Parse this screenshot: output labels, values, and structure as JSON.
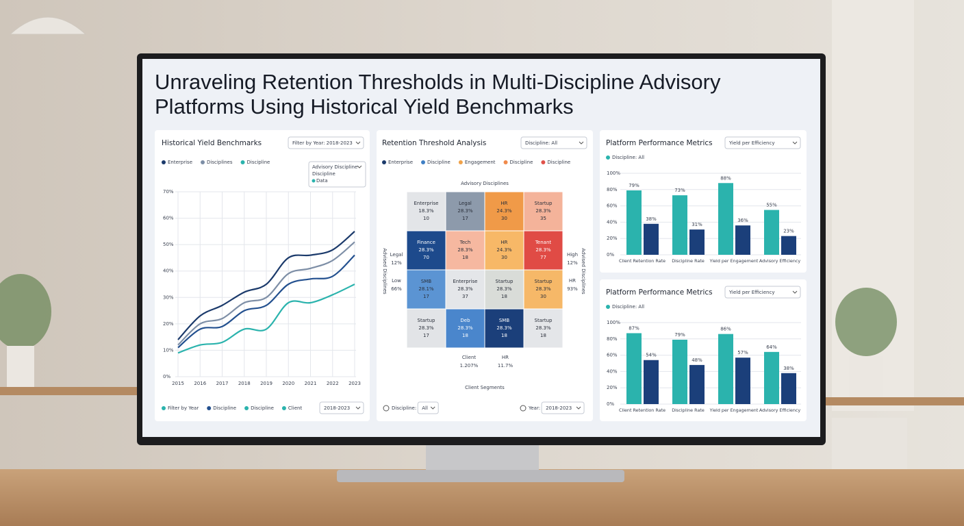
{
  "title_lines": [
    "Unraveling Retention Thresholds in Multi-Discipline Advisory",
    "Platforms Using Historical Yield Benchmarks"
  ],
  "panels": [
    {
      "title": "Historical Yield Benchmarks",
      "filter": "Filter by Year: 2018-2023",
      "popup": [
        "Advisory Discipline",
        "Discipline",
        "Data"
      ],
      "chart": {
        "type": "line",
        "categories": [
          "2015",
          "2016",
          "2017",
          "2018",
          "2019",
          "2020",
          "2021",
          "2022",
          "2023"
        ],
        "ylim": [
          0,
          70
        ],
        "yticks": [
          {
            "value": 0,
            "label": "0%"
          },
          {
            "value": 10,
            "label": "10%"
          },
          {
            "value": 20,
            "label": "20%"
          },
          {
            "value": 30,
            "label": "30%"
          },
          {
            "value": 40,
            "label": "40%"
          },
          {
            "value": 50,
            "label": "50%"
          },
          {
            "value": 60,
            "label": "60%"
          },
          {
            "value": 70,
            "label": "70%"
          }
        ],
        "series": [
          {
            "name": "Enterprise",
            "color": "#1b3a6b",
            "values": [
              14,
              23,
              27,
              32,
              35,
              45,
              46,
              48,
              55
            ]
          },
          {
            "name": "Disciplines",
            "color": "#7d8ea6",
            "values": [
              12,
              20,
              22,
              28,
              30,
              39,
              41,
              44,
              51
            ]
          },
          {
            "color": "#23508f",
            "values": [
              11,
              18,
              19,
              25,
              27,
              35,
              37,
              38,
              46
            ]
          },
          {
            "name": "Discipline",
            "color": "#2bb3ad",
            "values": [
              9,
              12,
              13,
              18,
              18,
              28,
              28,
              31,
              35
            ]
          }
        ]
      },
      "bottom_legend": [
        {
          "name": "Filter by Year",
          "color": "#2bb3ad"
        },
        {
          "name": "Discipline",
          "color": "#23508f"
        },
        {
          "name": "Discipline",
          "color": "#2bb3ad"
        },
        {
          "name": "Client",
          "color": "#2bb3ad"
        }
      ],
      "bottom_filter": "2018-2023"
    },
    {
      "title": "Retention Threshold Analysis",
      "filter": "Discipline: All",
      "legend": [
        {
          "name": "Enterprise",
          "color": "#1b3a6b"
        },
        {
          "name": "Discipline",
          "color": "#3f7fc4"
        },
        {
          "name": "Engagement",
          "color": "#f0a24a"
        },
        {
          "name": "Discipline",
          "color": "#f08a4b"
        },
        {
          "name": "Discipline",
          "color": "#e0524a"
        }
      ],
      "chart": {
        "type": "heatmap",
        "top_title": "Advisory Disciplines",
        "left_title": "Advised Disciplines",
        "right_title": "Advised Disciplines",
        "left_labels": [
          {
            "name": "Legal",
            "value": "12%"
          },
          {
            "name": "Low",
            "value": "66%"
          }
        ],
        "right_labels": [
          {
            "name": "High",
            "value": "12%"
          },
          {
            "name": "HR",
            "value": "93%"
          }
        ],
        "bottom_labels": [
          {
            "name": "Client",
            "value": "1.207%"
          },
          {
            "name": "HR",
            "value": "11.7%"
          }
        ],
        "bottom_title": "Client Segments",
        "rows": [
          [
            {
              "label": "Enterprise",
              "rate": "18.3%",
              "count": 10,
              "color": "#e3e5e8"
            },
            {
              "label": "Legal",
              "rate": "28.3%",
              "count": 17,
              "color": "#8d9aab"
            },
            {
              "label": "HR",
              "rate": "24.3%",
              "count": 30,
              "color": "#f09a48"
            },
            {
              "label": "Startup",
              "rate": "28.3%",
              "count": 35,
              "color": "#f4b39a"
            }
          ],
          [
            {
              "label": "Finance",
              "rate": "28.3%",
              "count": 70,
              "color": "#1d4a8c"
            },
            {
              "label": "Tech",
              "rate": "28.3%",
              "count": 18,
              "color": "#f6b8a0"
            },
            {
              "label": "HR",
              "rate": "24.3%",
              "count": 30,
              "color": "#f7b867"
            },
            {
              "label": "Tenant",
              "rate": "28.3%",
              "count": 77,
              "color": "#e04b45"
            }
          ],
          [
            {
              "label": "SMB",
              "rate": "28.1%",
              "count": 17,
              "color": "#5b94d3"
            },
            {
              "label": "Enterprise",
              "rate": "28.3%",
              "count": 37,
              "color": "#e4e6e9"
            },
            {
              "label": "Startup",
              "rate": "28.3%",
              "count": 18,
              "color": "#d9dcd8"
            },
            {
              "label": "Startup",
              "rate": "28.3%",
              "count": 30,
              "color": "#f6b868"
            }
          ],
          [
            {
              "label": "Startup",
              "rate": "28.3%",
              "count": 17,
              "color": "#e2e4e7"
            },
            {
              "label": "Deb",
              "rate": "28.3%",
              "count": 18,
              "color": "#4a86cc"
            },
            {
              "label": "SMB",
              "rate": "28.3%",
              "count": 18,
              "color": "#1b3f7a"
            },
            {
              "label": "Startup",
              "rate": "28.3%",
              "count": 18,
              "color": "#e4e6e9"
            }
          ]
        ]
      },
      "controls": [
        {
          "label": "Discipline:",
          "value": "All"
        },
        {
          "label": "Year:",
          "value": "2018-2023"
        }
      ]
    },
    {
      "title": "Platform Performance Metrics",
      "filter": "Yield per Efficiency",
      "chart": {
        "type": "bar",
        "categories": [
          "Client Retention Rate",
          "Discipline Rate",
          "Yield per Engagement",
          "Advisory Efficiency"
        ],
        "ylim": [
          0,
          100
        ],
        "yticks": [
          {
            "value": 0,
            "label": "0%"
          },
          {
            "value": 20,
            "label": "20%"
          },
          {
            "value": 40,
            "label": "40%"
          },
          {
            "value": 60,
            "label": "60%"
          },
          {
            "value": 80,
            "label": "80%"
          },
          {
            "value": 100,
            "label": "100%"
          }
        ],
        "series": [
          {
            "name": "Discipline: All",
            "color": "#2bb3ad",
            "values": [
              79,
              73,
              88,
              55
            ],
            "value_labels": [
              "79%",
              "73%",
              "88%",
              "55%"
            ]
          },
          {
            "color": "#1b3f7a",
            "values": [
              38,
              31,
              36,
              23
            ],
            "value_labels": [
              "38%",
              "31%",
              "36%",
              "23%"
            ]
          }
        ]
      }
    },
    {
      "title": "Platform Performance Metrics",
      "filter": "Yield per Efficiency",
      "chart": {
        "type": "bar",
        "categories": [
          "Client Retention Rate",
          "Discipline Rate",
          "Yield per Engagement",
          "Advisory Efficiency"
        ],
        "ylim": [
          0,
          100
        ],
        "yticks": [
          {
            "value": 0,
            "label": "0%"
          },
          {
            "value": 20,
            "label": "20%"
          },
          {
            "value": 40,
            "label": "40%"
          },
          {
            "value": 60,
            "label": "60%"
          },
          {
            "value": 80,
            "label": "80%"
          },
          {
            "value": 100,
            "label": "100%"
          }
        ],
        "series": [
          {
            "name": "Discipline: All",
            "color": "#2bb3ad",
            "values": [
              87,
              79,
              86,
              64
            ],
            "value_labels": [
              "87%",
              "79%",
              "86%",
              "64%"
            ]
          },
          {
            "color": "#1b3f7a",
            "values": [
              54,
              48,
              57,
              38
            ],
            "value_labels": [
              "54%",
              "48%",
              "57%",
              "38%"
            ]
          }
        ]
      }
    }
  ]
}
